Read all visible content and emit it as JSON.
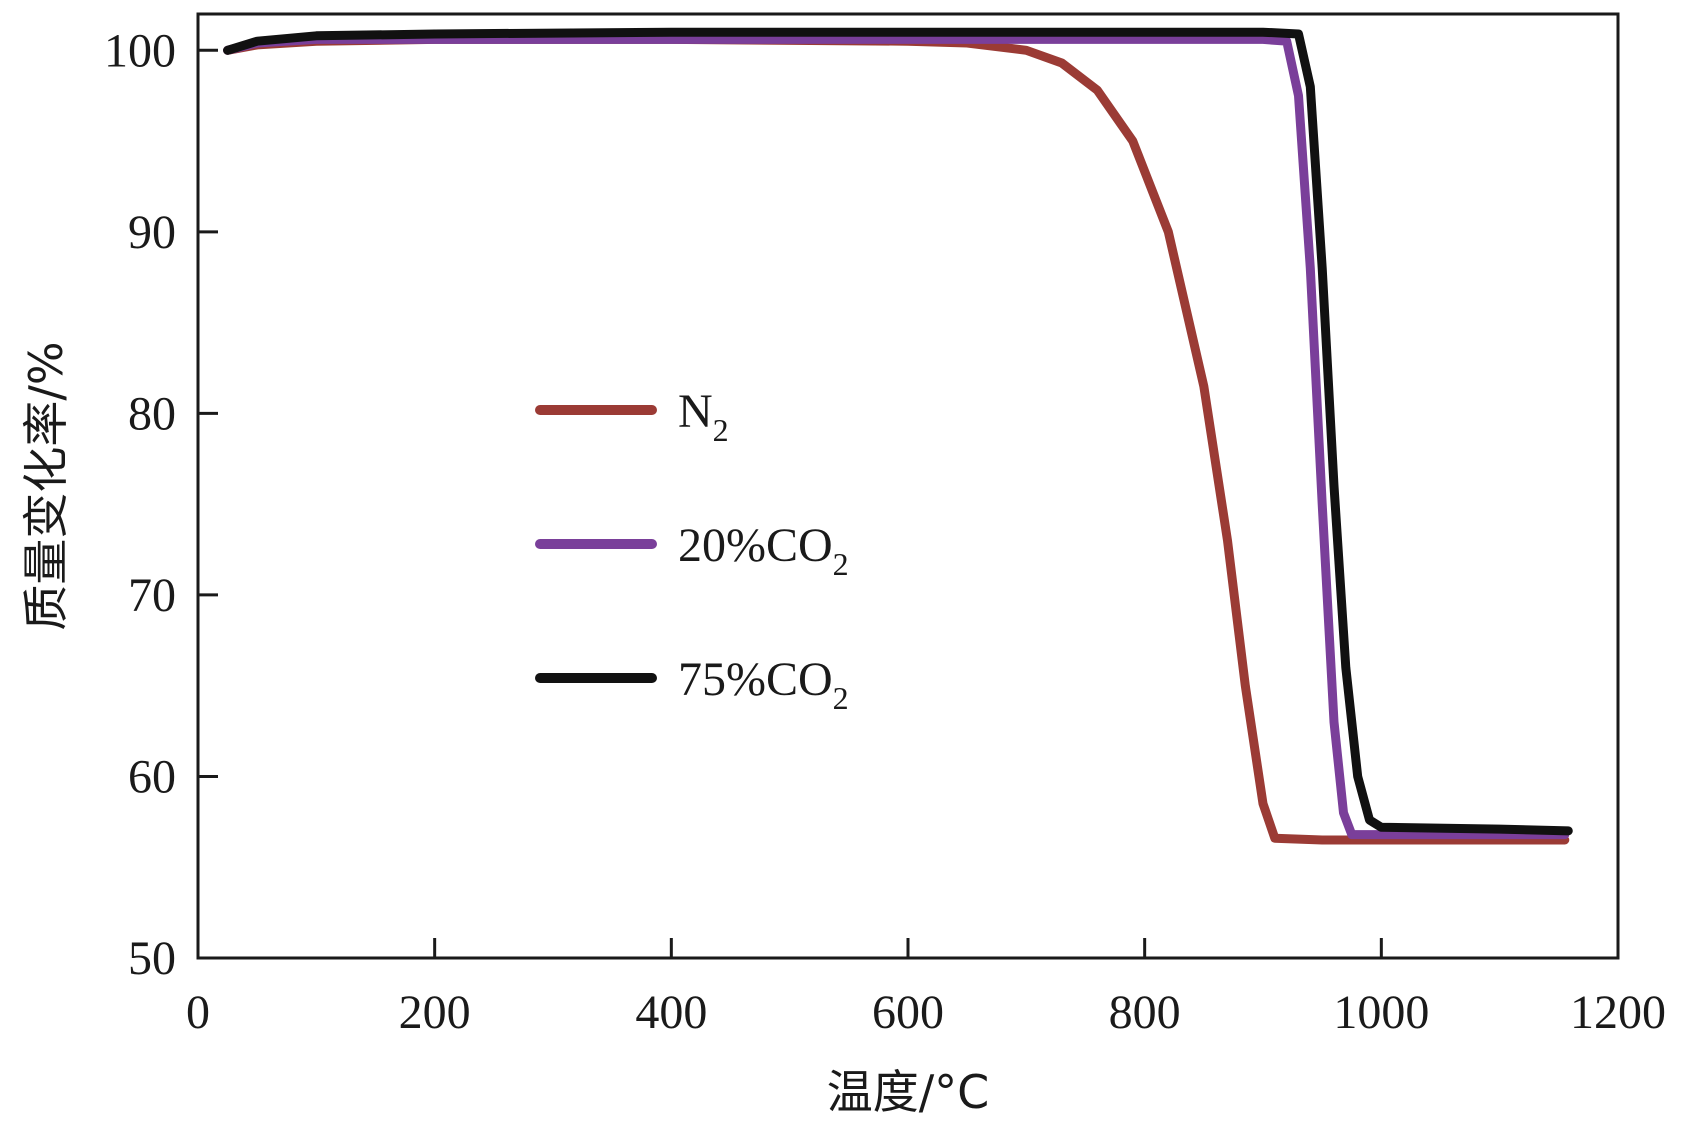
{
  "chart_data": {
    "type": "line",
    "xlabel": "温度/°C",
    "ylabel": "质量变化率/%",
    "xlim": [
      0,
      1200
    ],
    "ylim": [
      50,
      102
    ],
    "xticks": [
      0,
      200,
      400,
      600,
      800,
      1000,
      1200
    ],
    "yticks": [
      50,
      60,
      70,
      80,
      90,
      100
    ],
    "grid": false,
    "legend_position": "center-left",
    "series": [
      {
        "name": "N2",
        "label_main": "N",
        "label_sub": "2",
        "label_suffix": "",
        "color": "#9b3b35",
        "x": [
          25,
          50,
          100,
          200,
          400,
          600,
          650,
          700,
          730,
          760,
          790,
          820,
          850,
          870,
          885,
          900,
          910,
          950,
          1000,
          1100,
          1155
        ],
        "y": [
          100.0,
          100.3,
          100.5,
          100.6,
          100.6,
          100.5,
          100.4,
          100.0,
          99.3,
          97.8,
          95.0,
          90.0,
          81.5,
          73.0,
          65.0,
          58.5,
          56.6,
          56.5,
          56.5,
          56.5,
          56.5
        ]
      },
      {
        "name": "20%CO2",
        "label_main": "20%CO",
        "label_sub": "2",
        "label_suffix": "",
        "color": "#7a3f9a",
        "x": [
          25,
          50,
          100,
          200,
          400,
          600,
          800,
          900,
          920,
          930,
          940,
          950,
          960,
          968,
          975,
          990,
          1100,
          1155
        ],
        "y": [
          100.0,
          100.4,
          100.6,
          100.6,
          100.6,
          100.6,
          100.6,
          100.6,
          100.5,
          97.5,
          88.0,
          75.0,
          63.0,
          58.0,
          56.8,
          56.8,
          56.8,
          56.8
        ]
      },
      {
        "name": "75%CO2",
        "label_main": "75%CO",
        "label_sub": "2",
        "label_suffix": "",
        "color": "#111111",
        "x": [
          25,
          50,
          100,
          200,
          400,
          600,
          800,
          900,
          930,
          940,
          950,
          960,
          970,
          980,
          990,
          1000,
          1100,
          1158
        ],
        "y": [
          100.0,
          100.5,
          100.8,
          100.9,
          101.0,
          101.0,
          101.0,
          101.0,
          100.9,
          98.0,
          88.0,
          76.0,
          66.0,
          60.0,
          57.6,
          57.2,
          57.1,
          57.0
        ]
      }
    ]
  }
}
